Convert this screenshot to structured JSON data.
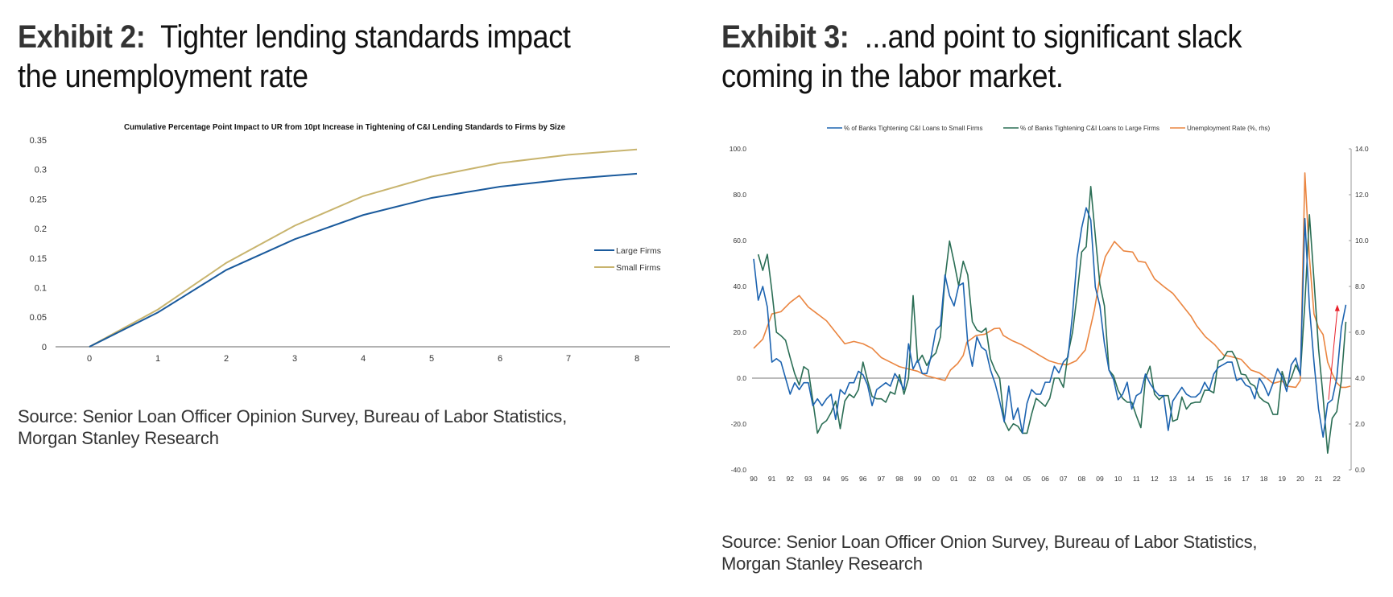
{
  "exhibit2": {
    "label": "Exhibit 2:",
    "title_line1": "Tighter lending standards impact",
    "title_line2": "the unemployment rate",
    "source_line1": "Source: Senior Loan Officer Opinion Survey, Bureau of Labor Statistics,",
    "source_line2": "Morgan Stanley Research"
  },
  "exhibit3": {
    "label": "Exhibit 3:",
    "title_line1": "...and point to significant slack",
    "title_line2": "coming in the labor market.",
    "source_line1": "Source: Senior Loan Officer Onion Survey, Bureau of Labor Statistics,",
    "source_line2": "Morgan Stanley Research"
  },
  "chart_data": [
    {
      "type": "line",
      "title": "Cumulative Percentage Point Impact to UR from 10pt Increase in Tightening of C&I Lending Standards to  Firms by Size",
      "xlabel": "",
      "ylabel": "",
      "x": [
        0,
        1,
        2,
        3,
        4,
        5,
        6,
        7,
        8
      ],
      "x_tick_labels": [
        "0",
        "1",
        "2",
        "3",
        "4",
        "5",
        "6",
        "7",
        "8"
      ],
      "y_tick_labels": [
        "0.35",
        "0.3",
        "0.25",
        "0.2",
        "0.15",
        "0.1",
        "0.05",
        "0"
      ],
      "ylim": [
        0,
        0.35
      ],
      "grid": false,
      "legend_position": "right",
      "series": [
        {
          "name": "Large Firms",
          "color": "#1a5a9c",
          "values": [
            0,
            0.058,
            0.13,
            0.182,
            0.223,
            0.252,
            0.271,
            0.284,
            0.293
          ]
        },
        {
          "name": "Small Firms",
          "color": "#c8b46e",
          "values": [
            0,
            0.063,
            0.142,
            0.205,
            0.255,
            0.288,
            0.311,
            0.325,
            0.334
          ]
        }
      ]
    },
    {
      "type": "line",
      "title": "",
      "x_start": 1990,
      "x_step": 0.25,
      "x_tick_labels": [
        "90",
        "91",
        "92",
        "93",
        "94",
        "95",
        "96",
        "97",
        "98",
        "99",
        "00",
        "01",
        "02",
        "03",
        "04",
        "05",
        "06",
        "07",
        "08",
        "09",
        "10",
        "11",
        "12",
        "13",
        "14",
        "15",
        "16",
        "17",
        "18",
        "19",
        "20",
        "21",
        "22"
      ],
      "y_left_tick_labels": [
        "100.0",
        "80.0",
        "60.0",
        "40.0",
        "20.0",
        "0.0",
        "-20.0",
        "-40.0"
      ],
      "y_right_tick_labels": [
        "14.0",
        "12.0",
        "10.0",
        "8.0",
        "6.0",
        "4.0",
        "2.0",
        "0.0"
      ],
      "ylim_left": [
        -40,
        100
      ],
      "ylim_right": [
        0,
        14
      ],
      "grid": false,
      "legend_position": "top",
      "series": [
        {
          "name": "% of Banks Tightening C&I Loans to Small Firms",
          "axis": "left",
          "color": "#1c63b0",
          "values": [
            52,
            34,
            40,
            31,
            7,
            8.5,
            7,
            0,
            -7,
            -2,
            -5,
            -2,
            -2,
            -12,
            -9,
            -12,
            -9,
            -7,
            -18,
            -5,
            -7,
            -2,
            -2,
            3,
            1.5,
            -3,
            -12,
            -5,
            -3.5,
            -2,
            -3.5,
            2,
            -1,
            -5,
            15,
            4,
            8,
            2,
            2,
            10,
            21,
            23,
            45,
            36,
            31.5,
            40.3,
            41.5,
            15,
            5.2,
            18,
            13.5,
            12,
            3.5,
            -2.3,
            -10,
            -19,
            -3.5,
            -18,
            -13,
            -24,
            -11,
            -5,
            -7,
            -7,
            -1.8,
            -1.8,
            5.2,
            2.3,
            7.1,
            9.2,
            28,
            52.6,
            65.5,
            74.3,
            69,
            39.7,
            31.5,
            15,
            3.5,
            -0.6,
            -9.4,
            -7,
            -1.8,
            -13.5,
            -7.6,
            -6.4,
            1.8,
            -2.3,
            -5.3,
            -7.6,
            -7.6,
            -22.8,
            -10,
            -7,
            -4,
            -7,
            -8.2,
            -8.2,
            -6.4,
            -1.8,
            -5.3,
            1.8,
            4.7,
            5.8,
            7,
            7,
            -1,
            0,
            -3,
            -4,
            -9,
            0,
            -3,
            -7.6,
            -2.3,
            4.1,
            0.6,
            -5.8,
            5.8,
            8.8,
            1.2,
            69.6,
            31,
            7,
            -13.4,
            -25.7,
            -11,
            -9.4,
            0,
            22,
            32
          ]
        },
        {
          "name": "% of Banks Tightening C&I Loans to Large Firms",
          "axis": "left",
          "color": "#2b6e55",
          "values": [
            null,
            54,
            47,
            54,
            38,
            20,
            18.5,
            16.5,
            9,
            2,
            -3,
            5,
            3.5,
            -10,
            -24,
            -20,
            -18.5,
            -15,
            -10,
            -22,
            -10,
            -7,
            -8.5,
            -5,
            7,
            -1,
            -8,
            -9,
            -9,
            -10.5,
            -6,
            -7,
            1.5,
            -7,
            0,
            36,
            7,
            10,
            5.5,
            9,
            11,
            18,
            43.3,
            59.8,
            50.5,
            40.3,
            51,
            45,
            24.6,
            21,
            20,
            21.8,
            8.3,
            3.5,
            0,
            -18.8,
            -22.8,
            -19.9,
            -21,
            -24,
            -24,
            -15.8,
            -8.8,
            -10.5,
            -12.3,
            -8.8,
            0,
            0,
            -4,
            10.5,
            20,
            36.3,
            55,
            57.3,
            83.6,
            62,
            41,
            31.5,
            3.5,
            1,
            -5.3,
            -8.8,
            -10.5,
            -10.5,
            -16.4,
            -21.6,
            0,
            5.2,
            -7,
            -9.4,
            -7.6,
            -7.6,
            -18.8,
            -18,
            -8.2,
            -13.5,
            -11,
            -10.5,
            -10.5,
            -5.3,
            -5.3,
            -6.4,
            7.6,
            8.4,
            11.6,
            11.7,
            8.2,
            1.8,
            1.4,
            -2.3,
            -3.5,
            -8.2,
            -10,
            -11,
            -15.8,
            -15.8,
            2.9,
            -3.5,
            0,
            5.8,
            1.8,
            32.7,
            71.3,
            42.7,
            12.9,
            -8.2,
            -32.7,
            -17.5,
            -14.6,
            -1.2,
            24.6
          ]
        },
        {
          "name": "Unemployment Rate (%, rhs)",
          "axis": "right",
          "color": "#ea8540",
          "points": [
            [
              1990,
              5.3
            ],
            [
              1990.5,
              5.7
            ],
            [
              1991,
              6.8
            ],
            [
              1991.5,
              6.9
            ],
            [
              1992,
              7.3
            ],
            [
              1992.5,
              7.6
            ],
            [
              1993,
              7.1
            ],
            [
              1993.5,
              6.8
            ],
            [
              1994,
              6.5
            ],
            [
              1994.5,
              6.0
            ],
            [
              1995,
              5.5
            ],
            [
              1995.5,
              5.6
            ],
            [
              1996,
              5.5
            ],
            [
              1996.5,
              5.3
            ],
            [
              1997,
              4.9
            ],
            [
              1997.5,
              4.7
            ],
            [
              1998,
              4.5
            ],
            [
              1998.5,
              4.4
            ],
            [
              1999,
              4.3
            ],
            [
              1999.5,
              4.1
            ],
            [
              2000,
              4.0
            ],
            [
              2000.5,
              3.9
            ],
            [
              2000.8,
              4.35
            ],
            [
              2001.2,
              4.64
            ],
            [
              2001.5,
              4.99
            ],
            [
              2001.7,
              5.57
            ],
            [
              2002.2,
              5.86
            ],
            [
              2002.7,
              5.92
            ],
            [
              2003.2,
              6.16
            ],
            [
              2003.5,
              6.18
            ],
            [
              2003.7,
              5.86
            ],
            [
              2004.2,
              5.63
            ],
            [
              2004.7,
              5.46
            ],
            [
              2005.2,
              5.23
            ],
            [
              2005.7,
              4.99
            ],
            [
              2006.2,
              4.76
            ],
            [
              2006.7,
              4.64
            ],
            [
              2007.2,
              4.58
            ],
            [
              2007.7,
              4.76
            ],
            [
              2008.2,
              5.23
            ],
            [
              2008.7,
              6.98
            ],
            [
              2009,
              8.38
            ],
            [
              2009.3,
              9.3
            ],
            [
              2009.8,
              9.96
            ],
            [
              2010.3,
              9.55
            ],
            [
              2010.8,
              9.5
            ],
            [
              2011.1,
              9.1
            ],
            [
              2011.5,
              9.05
            ],
            [
              2012,
              8.33
            ],
            [
              2012.5,
              8.0
            ],
            [
              2013,
              7.7
            ],
            [
              2013.5,
              7.2
            ],
            [
              2014,
              6.7
            ],
            [
              2014.3,
              6.3
            ],
            [
              2014.8,
              5.8
            ],
            [
              2015.3,
              5.46
            ],
            [
              2015.8,
              5.0
            ],
            [
              2016.2,
              4.94
            ],
            [
              2016.75,
              4.82
            ],
            [
              2017.3,
              4.35
            ],
            [
              2017.75,
              4.23
            ],
            [
              2018.25,
              3.94
            ],
            [
              2018.5,
              3.77
            ],
            [
              2019,
              3.88
            ],
            [
              2019.25,
              3.65
            ],
            [
              2019.75,
              3.6
            ],
            [
              2020,
              3.9
            ],
            [
              2020.25,
              12.95
            ],
            [
              2020.5,
              9.26
            ],
            [
              2020.75,
              6.8
            ],
            [
              2021,
              6.2
            ],
            [
              2021.25,
              5.9
            ],
            [
              2021.5,
              4.7
            ],
            [
              2021.75,
              4.2
            ],
            [
              2022,
              3.8
            ],
            [
              2022.25,
              3.6
            ],
            [
              2022.5,
              3.6
            ],
            [
              2022.75,
              3.65
            ]
          ]
        }
      ],
      "annotations": [
        {
          "type": "arrow",
          "axis": "right",
          "color": "#e8202a",
          "from": [
            2021.55,
            3.06
          ],
          "to": [
            2022.03,
            7.1
          ]
        }
      ]
    }
  ]
}
